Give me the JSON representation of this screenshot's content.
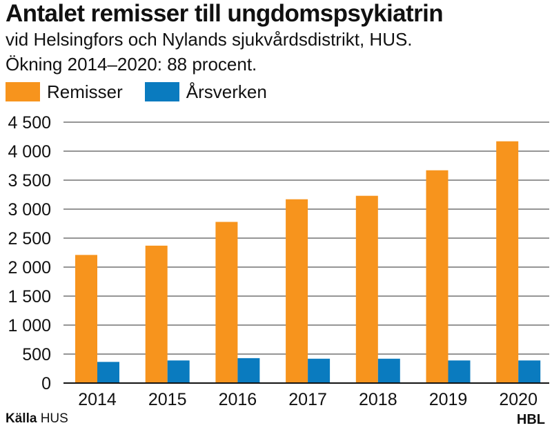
{
  "header": {
    "title": "Antalet remisser till ungdomspsykiatrin",
    "subtitle_line1": "vid Helsingfors och Nylands sjukvårdsdistrikt, HUS.",
    "subtitle_line2": "Ökning 2014–2020: 88 procent."
  },
  "footer": {
    "source_label": "Källa",
    "source_value": "HUS",
    "brand": "HBL"
  },
  "chart_data": {
    "type": "bar",
    "categories": [
      "2014",
      "2015",
      "2016",
      "2017",
      "2018",
      "2019",
      "2020"
    ],
    "series": [
      {
        "name": "Remisser",
        "color": "#f7941d",
        "values": [
          2210,
          2370,
          2780,
          3170,
          3230,
          3670,
          4170
        ]
      },
      {
        "name": "Årsverken",
        "color": "#0a7bbf",
        "values": [
          365,
          390,
          430,
          420,
          420,
          390,
          390
        ]
      }
    ],
    "ylim": [
      0,
      4500
    ],
    "yticks": [
      0,
      500,
      1000,
      1500,
      2000,
      2500,
      3000,
      3500,
      4000,
      4500
    ],
    "ytick_labels": [
      "0",
      "500",
      "1 000",
      "1 500",
      "2 000",
      "2 500",
      "3 000",
      "3 500",
      "4 000",
      "4 500"
    ],
    "grid": true,
    "legend_position": "top-left",
    "title": "Antalet remisser till ungdomspsykiatrin",
    "xlabel": "",
    "ylabel": ""
  }
}
